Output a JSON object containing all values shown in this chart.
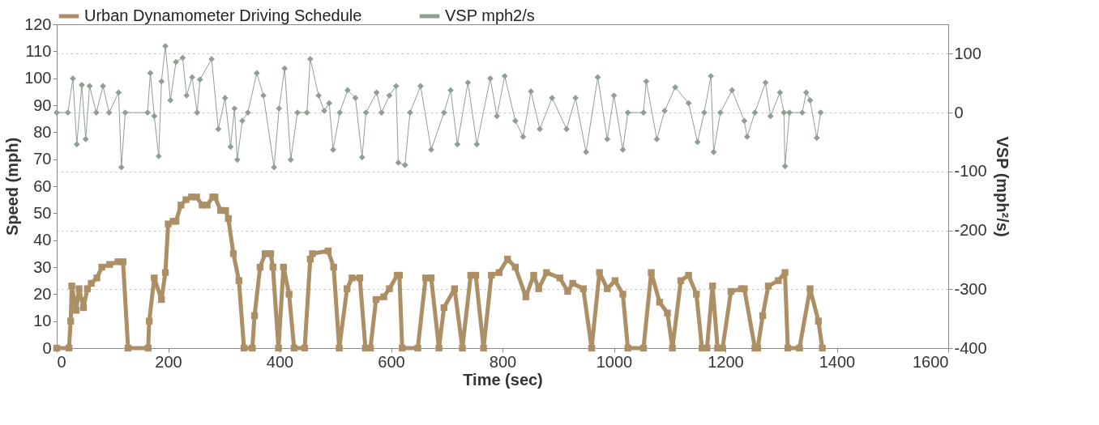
{
  "chart_data": {
    "type": "line",
    "xlabel": "Time (sec)",
    "ylabel": "Speed (mph)",
    "y2label": "VSP (mph²/s)",
    "xlim": [
      0,
      1600
    ],
    "xticks": [
      0,
      200,
      400,
      600,
      800,
      1000,
      1200,
      1400,
      1600
    ],
    "ylim": [
      0,
      120
    ],
    "yticks": [
      0,
      10,
      20,
      30,
      40,
      50,
      60,
      70,
      80,
      90,
      100,
      110,
      120
    ],
    "y2lim": [
      -400,
      150
    ],
    "y2ticks": [
      -400,
      -300,
      -200,
      -100,
      0,
      100
    ],
    "grid": "y",
    "legend": "top",
    "line_style": "solid",
    "series": [
      {
        "name": "Urban Dynamometer Driving Schedule",
        "color": "#ad8f65",
        "marker": "square",
        "x": [
          0,
          22,
          25,
          27,
          35,
          40,
          48,
          55,
          62,
          72,
          81,
          95,
          110,
          119,
          128,
          164,
          166,
          175,
          188,
          195,
          200,
          209,
          214,
          223,
          232,
          242,
          251,
          261,
          270,
          280,
          284,
          294,
          303,
          308,
          317,
          327,
          336,
          351,
          355,
          365,
          374,
          384,
          388,
          398,
          407,
          417,
          426,
          445,
          455,
          459,
          487,
          497,
          507,
          521,
          530,
          544,
          554,
          563,
          573,
          587,
          597,
          611,
          615,
          620,
          648,
          662,
          672,
          686,
          695,
          714,
          728,
          743,
          752,
          766,
          780,
          794,
          809,
          823,
          842,
          856,
          865,
          879,
          903,
          917,
          926,
          945,
          960,
          974,
          988,
          1002,
          1016,
          1025,
          1053,
          1067,
          1082,
          1096,
          1105,
          1120,
          1134,
          1148,
          1158,
          1167,
          1177,
          1186,
          1195,
          1210,
          1229,
          1234,
          1253,
          1258,
          1267,
          1277,
          1295,
          1307,
          1312,
          1333,
          1352,
          1367,
          1374
        ],
        "values": [
          0,
          0,
          10,
          23,
          14,
          22,
          15,
          22,
          24,
          26,
          30,
          31,
          32,
          32,
          0,
          0,
          10,
          26,
          18,
          28,
          46,
          47,
          47,
          53,
          55,
          56,
          56,
          53,
          53,
          56,
          56,
          51,
          51,
          48,
          35,
          25,
          0,
          0,
          12,
          30,
          35,
          35,
          30,
          0,
          30,
          20,
          0,
          0,
          33,
          35,
          36,
          30,
          0,
          22,
          26,
          26,
          0,
          0,
          18,
          19,
          22,
          27,
          27,
          0,
          0,
          26,
          26,
          0,
          15,
          22,
          0,
          27,
          27,
          0,
          27,
          28,
          33,
          30,
          19,
          27,
          22,
          28,
          26,
          21,
          24,
          22,
          0,
          28,
          22,
          25,
          20,
          0,
          0,
          28,
          17,
          13,
          0,
          25,
          27,
          20,
          0,
          0,
          23,
          0,
          0,
          21,
          22,
          22,
          0,
          0,
          12,
          23,
          25,
          28,
          0,
          0,
          22,
          10,
          0
        ]
      },
      {
        "name": "VSP mph2/s",
        "color": "#8fa093",
        "marker": "diamond",
        "axis": "y2",
        "x": [
          0,
          20,
          29,
          36,
          45,
          52,
          59,
          71,
          83,
          94,
          111,
          116,
          123,
          163,
          168,
          175,
          183,
          188,
          195,
          204,
          214,
          226,
          233,
          243,
          252,
          257,
          278,
          290,
          302,
          312,
          319,
          324,
          333,
          343,
          359,
          371,
          390,
          399,
          409,
          420,
          432,
          449,
          455,
          470,
          480,
          489,
          496,
          508,
          522,
          536,
          548,
          555,
          574,
          583,
          597,
          609,
          613,
          625,
          634,
          653,
          672,
          695,
          707,
          719,
          738,
          754,
          778,
          790,
          804,
          823,
          837,
          851,
          867,
          889,
          915,
          931,
          950,
          971,
          988,
          1000,
          1016,
          1025,
          1053,
          1058,
          1077,
          1091,
          1110,
          1134,
          1150,
          1162,
          1174,
          1179,
          1191,
          1212,
          1234,
          1239,
          1253,
          1272,
          1281,
          1298,
          1305,
          1307,
          1315,
          1338,
          1345,
          1352,
          1364,
          1371
        ],
        "values": [
          0,
          0,
          58,
          -54,
          47,
          -45,
          45,
          0,
          45,
          0,
          34,
          -93,
          0,
          0,
          67,
          -6,
          -74,
          53,
          113,
          21,
          86,
          93,
          29,
          60,
          0,
          56,
          91,
          -28,
          25,
          -58,
          7,
          -80,
          -14,
          0,
          67,
          29,
          -93,
          7,
          75,
          -80,
          0,
          0,
          91,
          29,
          3,
          16,
          -63,
          0,
          38,
          25,
          -76,
          0,
          34,
          0,
          29,
          45,
          -85,
          -89,
          0,
          45,
          -63,
          0,
          38,
          -54,
          51,
          -54,
          58,
          -6,
          62,
          -14,
          -41,
          36,
          -28,
          25,
          -28,
          25,
          -67,
          60,
          -45,
          29,
          -63,
          0,
          0,
          53,
          -45,
          3,
          43,
          16,
          -50,
          0,
          62,
          -67,
          0,
          38,
          -14,
          -41,
          0,
          51,
          -6,
          34,
          0,
          -91,
          0,
          0,
          34,
          21,
          -43,
          0
        ]
      }
    ]
  }
}
